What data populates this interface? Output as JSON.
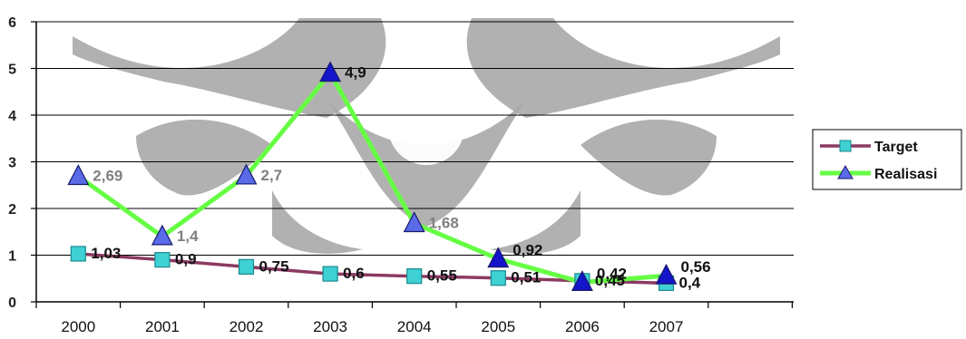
{
  "chart_data": {
    "type": "line",
    "title": "",
    "xlabel": "",
    "ylabel": "",
    "categories": [
      "2000",
      "2001",
      "2002",
      "2003",
      "2004",
      "2005",
      "2006",
      "2007"
    ],
    "ylim": [
      0,
      6
    ],
    "yticks": [
      "0",
      "1",
      "2",
      "3",
      "4",
      "5",
      "6"
    ],
    "grid": true,
    "legend_position": "right",
    "series": [
      {
        "name": "Target",
        "values": [
          1.03,
          0.9,
          0.75,
          0.6,
          0.55,
          0.51,
          0.45,
          0.4
        ],
        "labels": [
          "1,03",
          "0,9",
          "0,75",
          "0,6",
          "0,55",
          "0,51",
          "0,45",
          "0,4"
        ],
        "line_color": "#8b3a62",
        "marker": "square",
        "marker_color": "#3fd0d4"
      },
      {
        "name": "Realisasi",
        "values": [
          2.69,
          1.4,
          2.7,
          4.9,
          1.68,
          0.92,
          0.42,
          0.56
        ],
        "labels": [
          "2,69",
          "1,4",
          "2,7",
          "4,9",
          "1,68",
          "0,92",
          "0,42",
          "0,56"
        ],
        "line_color": "#66ff44",
        "marker": "triangle",
        "marker_color": "#5a6be8"
      }
    ]
  }
}
